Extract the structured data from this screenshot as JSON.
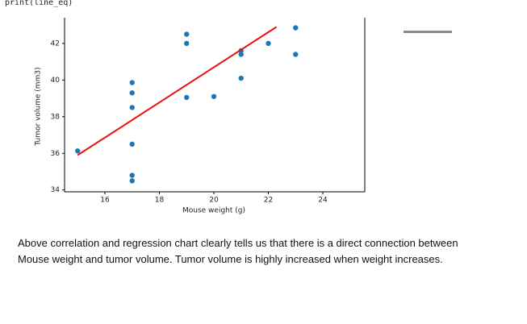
{
  "code_line": "print(line_eq)",
  "chart_data": {
    "type": "scatter",
    "xlabel": "Mouse weight (g)",
    "ylabel": "Tumor volume (mm3)",
    "xlim": [
      14.52,
      25.54
    ],
    "ylim": [
      33.9,
      43.4
    ],
    "xticks": [
      16,
      18,
      20,
      22,
      24
    ],
    "yticks": [
      34,
      36,
      38,
      40,
      42
    ],
    "series": [
      {
        "type": "scatter",
        "color": "#1f77b4",
        "x": [
          15,
          17,
          17,
          17,
          17,
          17,
          17,
          19,
          19,
          19,
          20,
          21,
          21,
          21,
          22,
          23,
          23
        ],
        "values": [
          36.13,
          39.86,
          39.3,
          38.5,
          36.5,
          34.8,
          34.5,
          42.5,
          42.0,
          39.05,
          39.1,
          41.6,
          41.4,
          40.1,
          42.0,
          42.85,
          41.4
        ]
      },
      {
        "type": "line",
        "color": "#e8120c",
        "x": [
          15,
          22.3
        ],
        "values": [
          35.9,
          42.9
        ]
      }
    ]
  },
  "paragraph_lines": [
    "Above correlation and regression chart clearly tells us that there is a direct connection between",
    "Mouse weight and tumor volume. Tumor volume is highly increased when weight increases."
  ]
}
